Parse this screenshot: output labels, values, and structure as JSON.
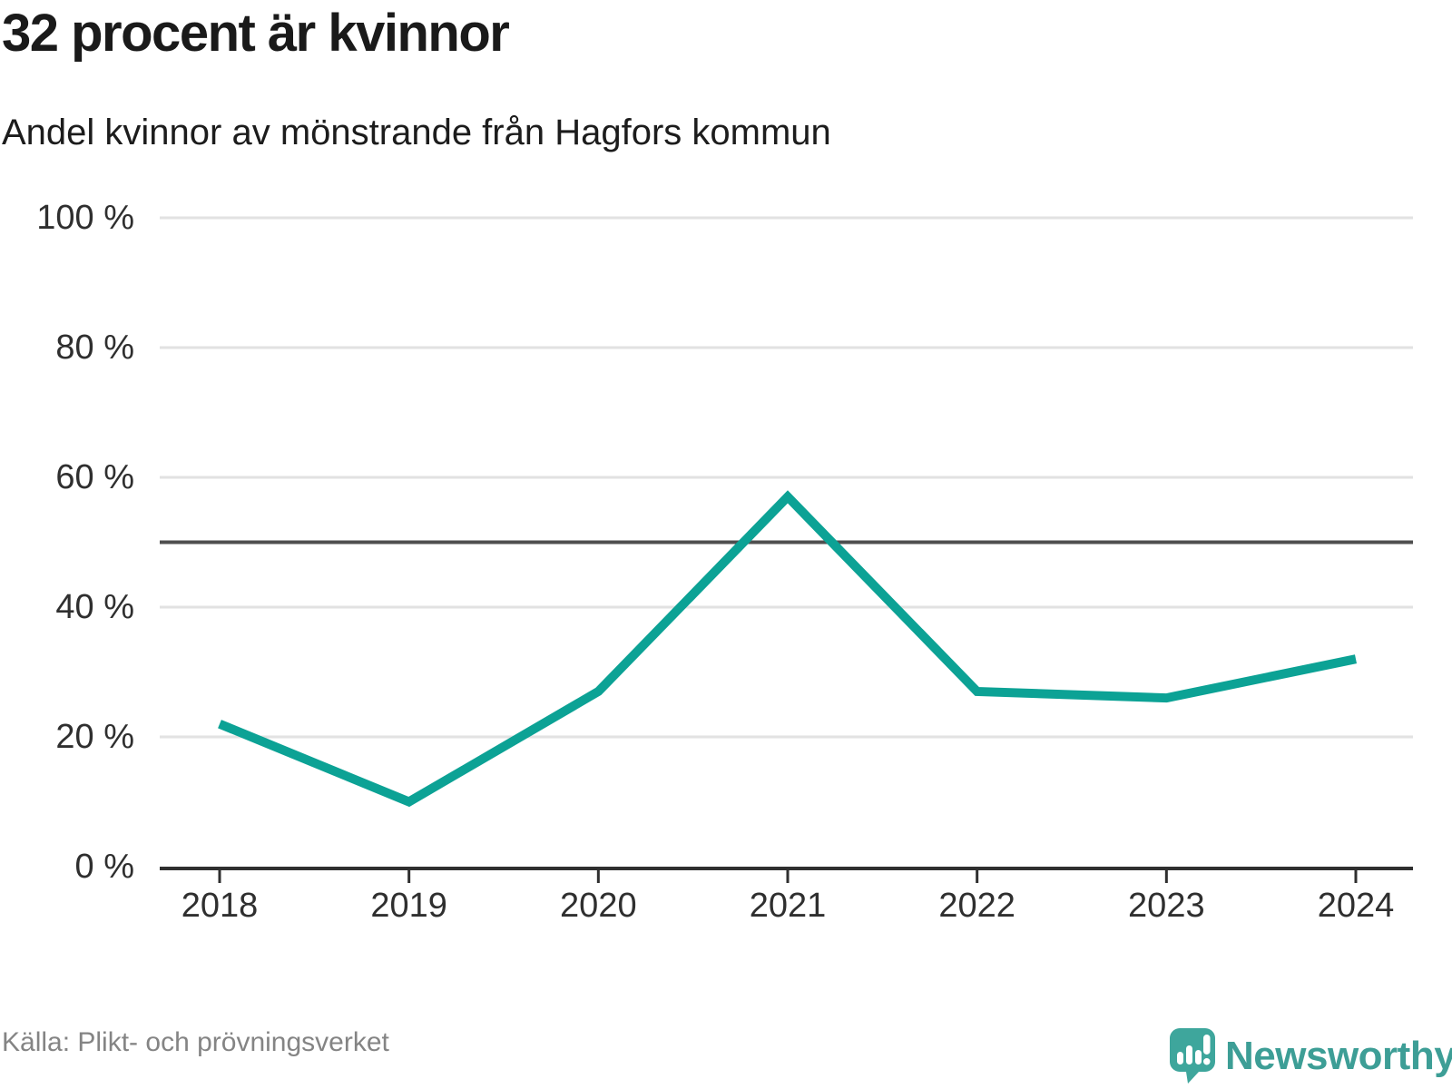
{
  "header": {
    "title": "32 procent är kvinnor",
    "subtitle": "Andel kvinnor av mönstrande från Hagfors kommun"
  },
  "footer": {
    "source": "Källa: Plikt- och prövningsverket",
    "brand": "Newsworthy"
  },
  "colors": {
    "line": "#0ca295",
    "brand_bubble": "#3ea69c",
    "brand_text": "#3d9e96",
    "grid": "#e2e2e2",
    "reference": "#4f4f4f",
    "axis": "#2f2f2f",
    "title_text": "#1a1a1a",
    "tick_label": "#2f2f2f",
    "muted": "#848484"
  },
  "chart_data": {
    "type": "line",
    "title": "32 procent är kvinnor",
    "subtitle": "Andel kvinnor av mönstrande från Hagfors kommun",
    "x": [
      2018,
      2019,
      2020,
      2021,
      2022,
      2023,
      2024
    ],
    "x_labels": [
      "2018",
      "2019",
      "2020",
      "2021",
      "2022",
      "2023",
      "2024"
    ],
    "series": [
      {
        "name": "Andel kvinnor av mönstrande",
        "values": [
          22,
          10,
          27,
          57,
          27,
          26,
          32
        ]
      }
    ],
    "unit": "%",
    "xlabel": "",
    "ylabel": "",
    "ylim": [
      0,
      100
    ],
    "yticks": [
      0,
      20,
      40,
      60,
      80,
      100
    ],
    "ytick_labels": [
      "0 %",
      "20 %",
      "40 %",
      "60 %",
      "80 %",
      "100 %"
    ],
    "reference_line": 50,
    "grid": "horizontal",
    "legend": "none"
  }
}
